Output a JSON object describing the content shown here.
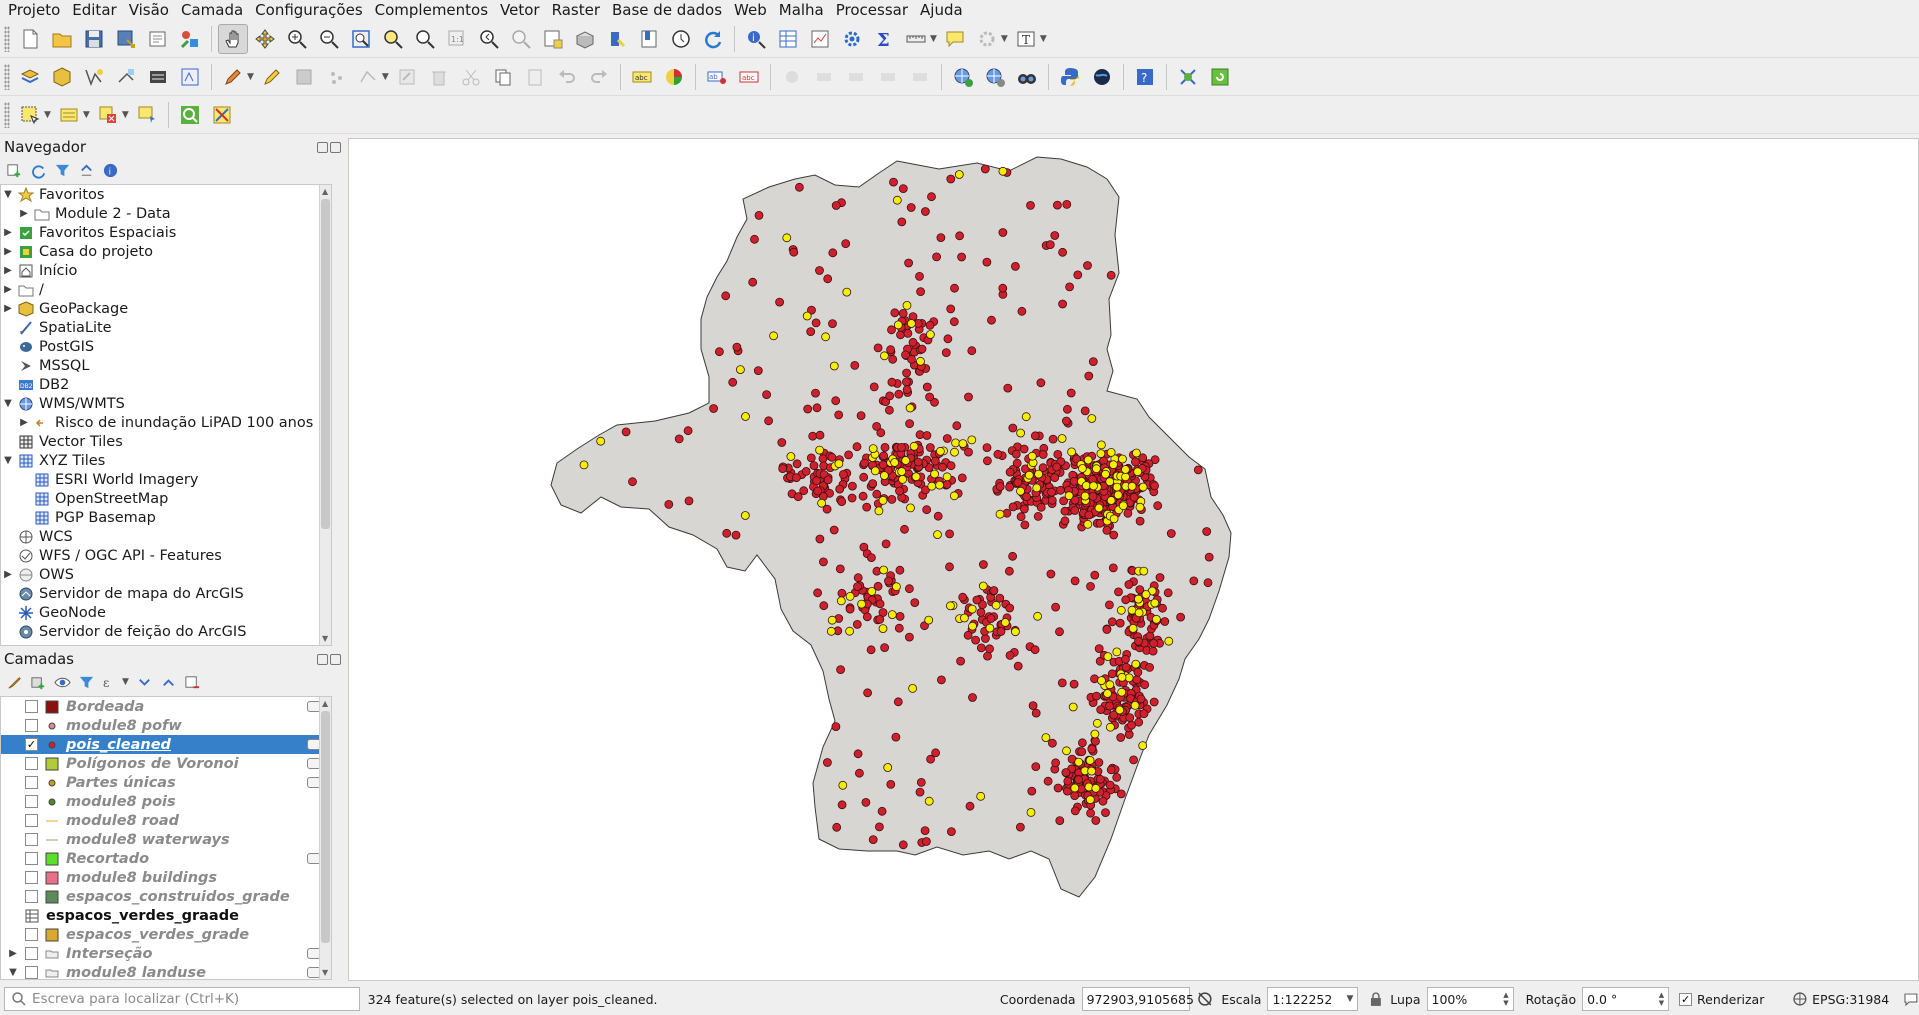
{
  "menubar": [
    "Projeto",
    "Editar",
    "Visão",
    "Camada",
    "Configurações",
    "Complementos",
    "Vetor",
    "Raster",
    "Base de dados",
    "Web",
    "Malha",
    "Processar",
    "Ajuda"
  ],
  "browser": {
    "title": "Navegador",
    "items": [
      {
        "label": "Favoritos",
        "icon": "star-icon",
        "expanded": true,
        "indent": 0
      },
      {
        "label": "Module 2 - Data",
        "icon": "folder-icon",
        "expanded": false,
        "indent": 1
      },
      {
        "label": "Favoritos Espaciais",
        "icon": "spatial-bookmark-icon",
        "expanded": false,
        "indent": 0
      },
      {
        "label": "Casa do projeto",
        "icon": "project-home-icon",
        "expanded": false,
        "indent": 0
      },
      {
        "label": "Início",
        "icon": "home-icon",
        "expanded": false,
        "indent": 0
      },
      {
        "label": "/",
        "icon": "folder-icon",
        "expanded": false,
        "indent": 0
      },
      {
        "label": "GeoPackage",
        "icon": "geopackage-icon",
        "expanded": false,
        "indent": 0
      },
      {
        "label": "SpatiaLite",
        "icon": "spatialite-icon",
        "expanded": null,
        "indent": 0
      },
      {
        "label": "PostGIS",
        "icon": "postgis-icon",
        "expanded": null,
        "indent": 0
      },
      {
        "label": "MSSQL",
        "icon": "mssql-icon",
        "expanded": null,
        "indent": 0
      },
      {
        "label": "DB2",
        "icon": "db2-icon",
        "expanded": null,
        "indent": 0
      },
      {
        "label": "WMS/WMTS",
        "icon": "wms-icon",
        "expanded": true,
        "indent": 0
      },
      {
        "label": "Risco de inundação LiPAD 100 anos",
        "icon": "wms-layer-icon",
        "expanded": false,
        "indent": 1
      },
      {
        "label": "Vector Tiles",
        "icon": "vector-tiles-icon",
        "expanded": null,
        "indent": 0
      },
      {
        "label": "XYZ Tiles",
        "icon": "xyz-tiles-icon",
        "expanded": true,
        "indent": 0
      },
      {
        "label": "ESRI World Imagery",
        "icon": "xyz-tiles-icon",
        "expanded": null,
        "indent": 1
      },
      {
        "label": "OpenStreetMap",
        "icon": "xyz-tiles-icon",
        "expanded": null,
        "indent": 1
      },
      {
        "label": "PGP Basemap",
        "icon": "xyz-tiles-icon",
        "expanded": null,
        "indent": 1
      },
      {
        "label": "WCS",
        "icon": "wcs-icon",
        "expanded": null,
        "indent": 0
      },
      {
        "label": "WFS / OGC API - Features",
        "icon": "wfs-icon",
        "expanded": null,
        "indent": 0
      },
      {
        "label": "OWS",
        "icon": "ows-icon",
        "expanded": false,
        "indent": 0
      },
      {
        "label": "Servidor de mapa do ArcGIS",
        "icon": "arcgis-map-icon",
        "expanded": null,
        "indent": 0
      },
      {
        "label": "GeoNode",
        "icon": "geonode-icon",
        "expanded": null,
        "indent": 0
      },
      {
        "label": "Servidor de feição do ArcGIS",
        "icon": "arcgis-feature-icon",
        "expanded": null,
        "indent": 0
      }
    ]
  },
  "layers": {
    "title": "Camadas",
    "items": [
      {
        "name": "Bordeada",
        "checked": false,
        "symbol": "fill",
        "color": "#8b1010",
        "selected": false,
        "indicator": true
      },
      {
        "name": "module8 pofw",
        "checked": false,
        "symbol": "point",
        "color": "#e08a9a",
        "selected": false,
        "indicator": false
      },
      {
        "name": "pois_cleaned",
        "checked": true,
        "symbol": "point",
        "color": "#d0202e",
        "selected": true,
        "indicator": true
      },
      {
        "name": "Polígonos de Voronoi",
        "checked": false,
        "symbol": "fill",
        "color": "#b0cc3a",
        "selected": false,
        "indicator": true
      },
      {
        "name": "Partes únicas",
        "checked": false,
        "symbol": "point",
        "color": "#c89a2a",
        "selected": false,
        "indicator": true
      },
      {
        "name": "module8 pois",
        "checked": false,
        "symbol": "point",
        "color": "#4c8a2c",
        "selected": false,
        "indicator": false
      },
      {
        "name": "module8 road",
        "checked": false,
        "symbol": "line",
        "color": "#e8c87a",
        "selected": false,
        "indicator": false
      },
      {
        "name": "module8 waterways",
        "checked": false,
        "symbol": "line",
        "color": "#c8b8b0",
        "selected": false,
        "indicator": false
      },
      {
        "name": "Recortado",
        "checked": false,
        "symbol": "fill",
        "color": "#5ae02a",
        "selected": false,
        "indicator": true
      },
      {
        "name": "module8 buildings",
        "checked": false,
        "symbol": "fill",
        "color": "#e8708a",
        "selected": false,
        "indicator": false
      },
      {
        "name": "espacos_construidos_grade",
        "checked": false,
        "symbol": "fill",
        "color": "#5e8a5a",
        "selected": false,
        "indicator": false
      },
      {
        "name": "espacos_verdes_graade",
        "checked": null,
        "symbol": "table",
        "color": "#888888",
        "selected": false,
        "indicator": false
      },
      {
        "name": "espacos_verdes_grade",
        "checked": false,
        "symbol": "fill",
        "color": "#d8a830",
        "selected": false,
        "indicator": false
      },
      {
        "name": "Interseção",
        "checked": false,
        "symbol": "group",
        "color": "#888888",
        "selected": false,
        "indicator": true
      },
      {
        "name": "module8 landuse",
        "checked": false,
        "symbol": "group",
        "color": "#888888",
        "selected": false,
        "indicator": true
      }
    ]
  },
  "map": {
    "background": "#ffffff",
    "polygon_fill": "#d8d6d3",
    "polygon_stroke": "#3a3a3a",
    "point_red": "#d0202e",
    "point_yellow": "#f0f000",
    "point_stroke": "#3a1010",
    "red_point_count": 1100,
    "yellow_point_count": 190
  },
  "status": {
    "locator_placeholder": "Escreva para localizar (Ctrl+K)",
    "message": "324 feature(s) selected on layer pois_cleaned.",
    "coord_label": "Coordenada",
    "coord_value": "972903,9105685",
    "scale_label": "Escala",
    "scale_value": "1:122252",
    "magnifier_label": "Lupa",
    "magnifier_value": "100%",
    "rotation_label": "Rotação",
    "rotation_value": "0.0 °",
    "render_label": "Renderizar",
    "crs": "EPSG:31984"
  }
}
